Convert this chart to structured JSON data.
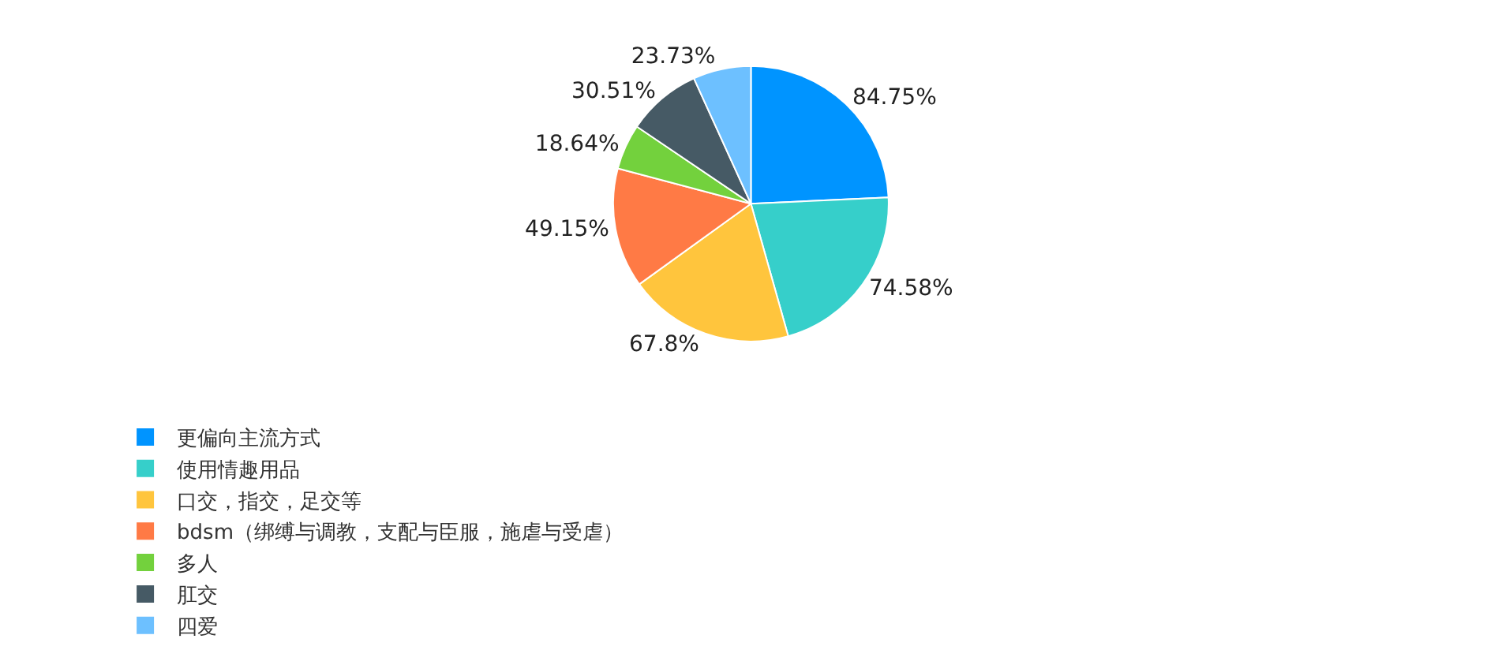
{
  "chart_data": {
    "type": "pie",
    "categories": [
      "更偏向主流方式",
      "使用情趣用品",
      "口交，指交，足交等",
      "bdsm（绑缚与调教，支配与臣服，施虐与受虐）",
      "多人",
      "肛交",
      "四爱"
    ],
    "values": [
      84.75,
      74.58,
      67.8,
      49.15,
      18.64,
      30.51,
      23.73
    ],
    "value_labels": [
      "84.75%",
      "74.58%",
      "67.8%",
      "49.15%",
      "18.64%",
      "30.51%",
      "23.73%"
    ],
    "colors": [
      "#0094ff",
      "#36cfca",
      "#ffc53d",
      "#ff7a45",
      "#73d13d",
      "#465a65",
      "#6dc0ff"
    ],
    "legend": "bottom"
  }
}
